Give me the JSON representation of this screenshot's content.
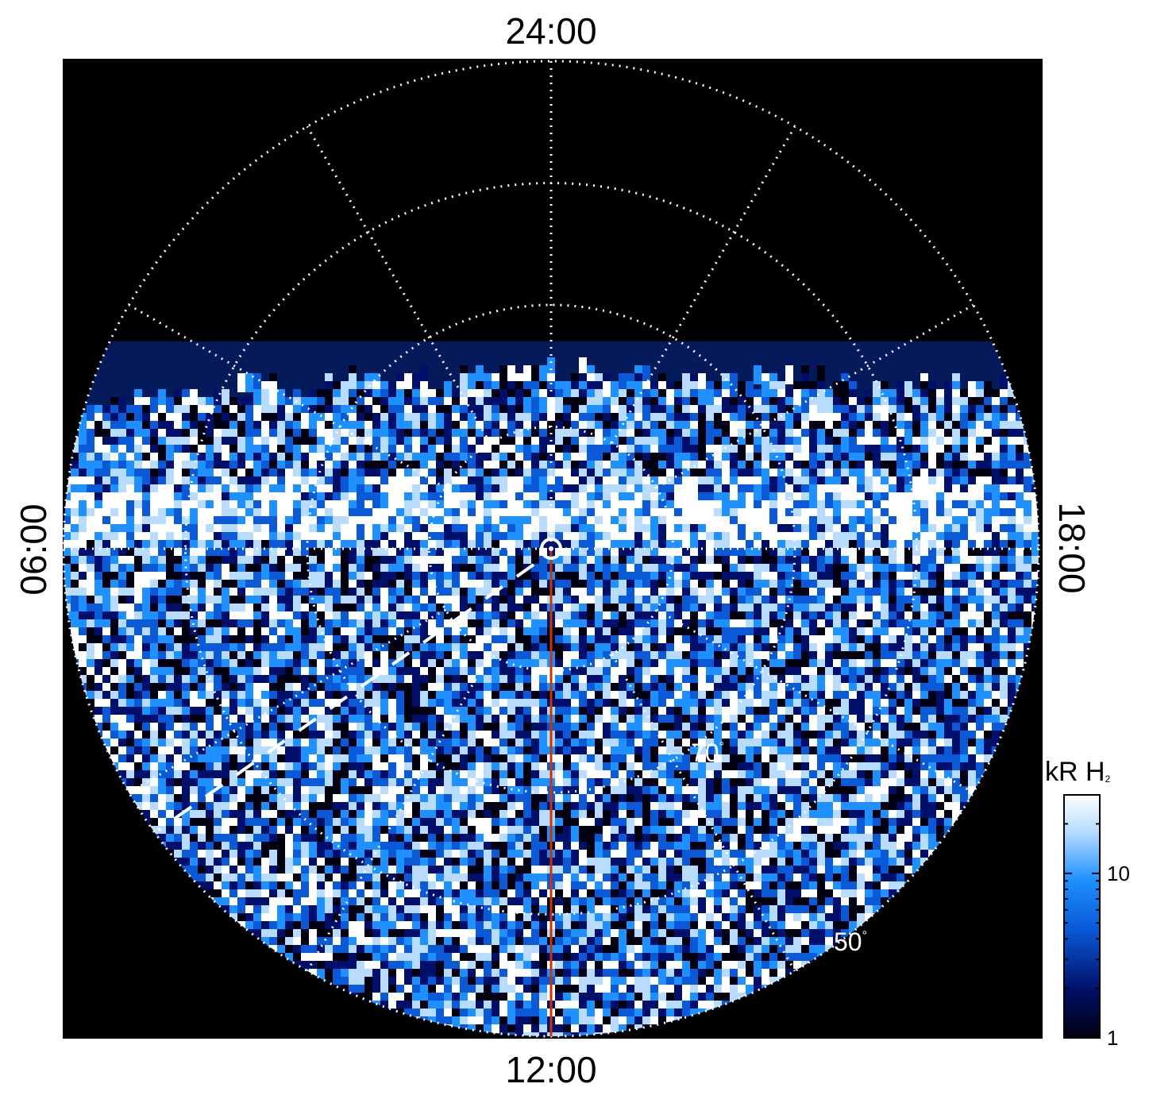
{
  "chart_data": {
    "type": "heatmap",
    "projection": "polar",
    "title": "",
    "local_time_labels": {
      "top": "24:00",
      "bottom": "12:00",
      "left": "06:00",
      "right": "18:00"
    },
    "latitude_labels": [
      "70°",
      "50°"
    ],
    "latitude_circles_deg": [
      80,
      70,
      60,
      50
    ],
    "local_time_meridians_hours": [
      0,
      2,
      4,
      6,
      8,
      10,
      12,
      14,
      16,
      18,
      20,
      22
    ],
    "grid": "dotted white",
    "colorbar": {
      "title": "kR H",
      "title_subscript": "2",
      "scale": "log",
      "range": [
        1,
        30
      ],
      "tick_labels": [
        "10",
        "1"
      ],
      "tick_values": [
        10,
        1
      ],
      "colormap": [
        "#000010",
        "#00106a",
        "#0a5ad8",
        "#1e90ff",
        "#b8dcff",
        "#ffffff"
      ]
    },
    "overlays": {
      "meridian_line": {
        "local_time": "12:00",
        "color": "#cc3300"
      },
      "dashed_line": {
        "color": "#ffffff"
      },
      "pole_marker": "circle"
    },
    "colors": {
      "background": "#000000",
      "grid": "#ffffff",
      "label_text": "#ffffff"
    }
  }
}
